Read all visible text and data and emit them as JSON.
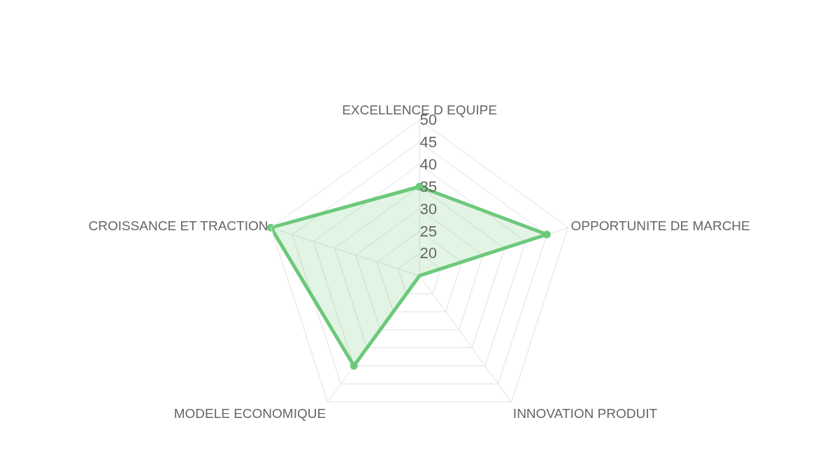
{
  "chart_data": {
    "type": "radar",
    "categories": [
      "EXCELLENCE D EQUIPE",
      "OPPORTUNITE DE MARCHE",
      "INNOVATION PRODUIT",
      "MODELE ECONOMIQUE",
      "CROISSANCE ET TRACTION"
    ],
    "series": [
      {
        "color": "#6cc97a",
        "values": [
          35,
          45,
          15,
          40,
          50
        ]
      }
    ],
    "ylim": [
      15,
      50
    ],
    "yticks": [
      20,
      25,
      30,
      35,
      40,
      45,
      50
    ],
    "grid": true,
    "marker": "circle",
    "legend": false
  }
}
